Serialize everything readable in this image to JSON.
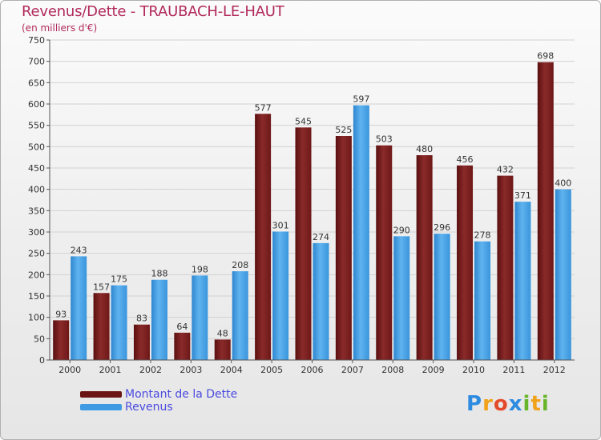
{
  "colors": {
    "debt": "#7a1c1c",
    "revenue": "#3e9be3",
    "title": "#b12a5b",
    "legend_text": "#4a4ae0"
  },
  "chart_data": {
    "type": "bar",
    "title": "Revenus/Dette - TRAUBACH-LE-HAUT",
    "subtitle": "(en milliers d'€)",
    "categories": [
      "2000",
      "2001",
      "2002",
      "2003",
      "2004",
      "2005",
      "2006",
      "2007",
      "2008",
      "2009",
      "2010",
      "2011",
      "2012"
    ],
    "series": [
      {
        "name": "Montant de la Dette",
        "color": "#7a1c1c",
        "values": [
          93,
          157,
          83,
          64,
          48,
          577,
          545,
          525,
          503,
          480,
          456,
          432,
          698
        ]
      },
      {
        "name": "Revenus",
        "color": "#3e9be3",
        "values": [
          243,
          175,
          188,
          198,
          208,
          301,
          274,
          597,
          290,
          296,
          278,
          371,
          400
        ]
      }
    ],
    "ylim": [
      0,
      750
    ],
    "yticks": [
      0,
      50,
      100,
      150,
      200,
      250,
      300,
      350,
      400,
      450,
      500,
      550,
      600,
      650,
      700,
      750
    ],
    "grid": true,
    "legend_position": "bottom-left"
  },
  "legend": [
    {
      "label": "Montant de la Dette",
      "color": "#7a1c1c"
    },
    {
      "label": "Revenus",
      "color": "#3e9be3"
    }
  ],
  "logo": {
    "text": "Proxiti",
    "letters": [
      "P",
      "r",
      "o",
      "x",
      "i",
      "t",
      "i"
    ],
    "letter_colors": [
      "#2d8be0",
      "#f0a21a",
      "#e34b2a",
      "#2d8be0",
      "#69b52a",
      "#f0a21a",
      "#69b52a"
    ]
  }
}
